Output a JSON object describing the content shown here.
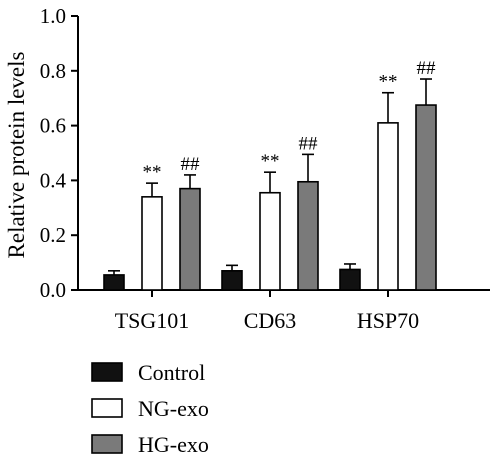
{
  "chart_data": {
    "type": "bar",
    "ylabel": "Relative protein levels",
    "ylim": [
      0,
      1.0
    ],
    "yticks": [
      "0.0",
      "0.2",
      "0.4",
      "0.6",
      "0.8",
      "1.0"
    ],
    "categories": [
      "TSG101",
      "CD63",
      "HSP70"
    ],
    "series": [
      {
        "name": "Control",
        "color": "#111111",
        "values": [
          0.055,
          0.07,
          0.075
        ],
        "errors": [
          0.015,
          0.02,
          0.02
        ],
        "significance": [
          "",
          "",
          ""
        ]
      },
      {
        "name": "NG-exo",
        "color": "#ffffff",
        "values": [
          0.34,
          0.355,
          0.61
        ],
        "errors": [
          0.05,
          0.075,
          0.11
        ],
        "significance": [
          "**",
          "**",
          "**"
        ]
      },
      {
        "name": "HG-exo",
        "color": "#7a7a7a",
        "values": [
          0.37,
          0.395,
          0.675
        ],
        "errors": [
          0.05,
          0.1,
          0.095
        ],
        "significance": [
          "##",
          "##",
          "##"
        ]
      }
    ],
    "grid": false,
    "legend_position": "bottom-left"
  }
}
